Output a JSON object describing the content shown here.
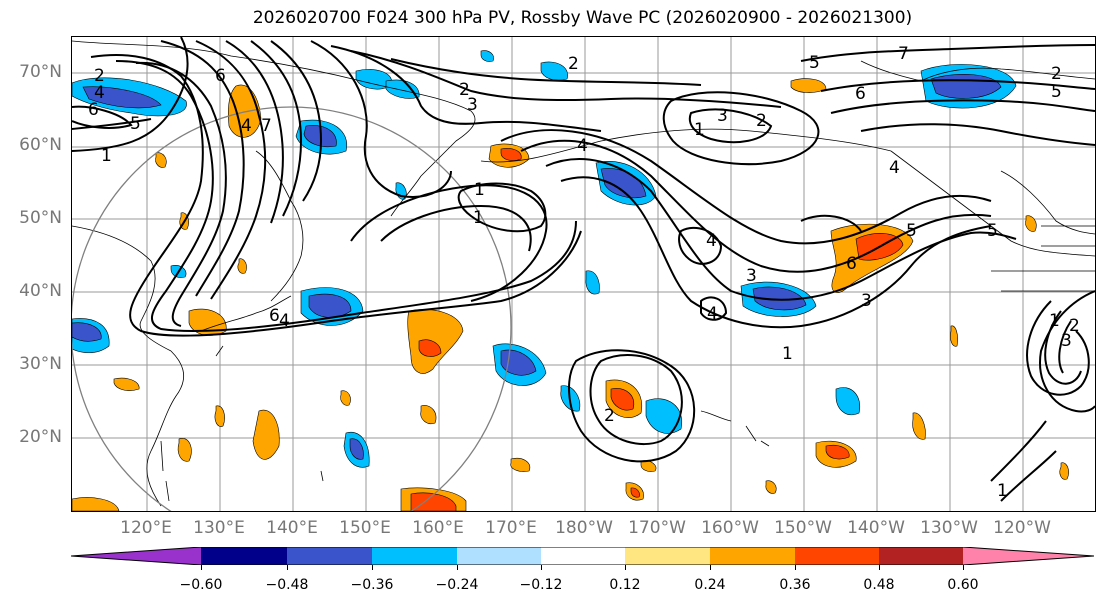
{
  "title": "2026020700 F024 300 hPa PV, Rossby Wave PC (2026020900 - 2026021300)",
  "colors": {
    "contour": "#000000",
    "grid": "#9a9a9a",
    "coast": "#000000",
    "circle": "#808080",
    "axis_label": "#777777",
    "bins": [
      "#9932cc",
      "#00008b",
      "#3a55cc",
      "#00bfff",
      "#b0e0ff",
      "#ffffff",
      "#ffe680",
      "#ffa500",
      "#ff4500",
      "#b22222",
      "#ff82ab"
    ]
  },
  "lat_labels": [
    "70°N",
    "60°N",
    "50°N",
    "40°N",
    "30°N",
    "20°N"
  ],
  "lon_labels": [
    "120°E",
    "130°E",
    "140°E",
    "150°E",
    "160°E",
    "170°E",
    "180°W",
    "170°W",
    "160°W",
    "150°W",
    "140°W",
    "130°W",
    "120°W"
  ],
  "colorbar": {
    "ticks": [
      "−0.60",
      "−0.48",
      "−0.36",
      "−0.24",
      "−0.12",
      "0.12",
      "0.24",
      "0.36",
      "0.48",
      "0.60"
    ]
  },
  "contour_labels": [
    "2",
    "4",
    "6",
    "5",
    "6",
    "2",
    "2",
    "1",
    "6",
    "5",
    "3",
    "2",
    "4",
    "7",
    "1",
    "1",
    "3",
    "2",
    "6",
    "4",
    "5",
    "7",
    "1",
    "4",
    "4",
    "3",
    "4",
    "1",
    "3",
    "5",
    "6",
    "5",
    "4",
    "2",
    "1",
    "1",
    "2",
    "3"
  ]
}
